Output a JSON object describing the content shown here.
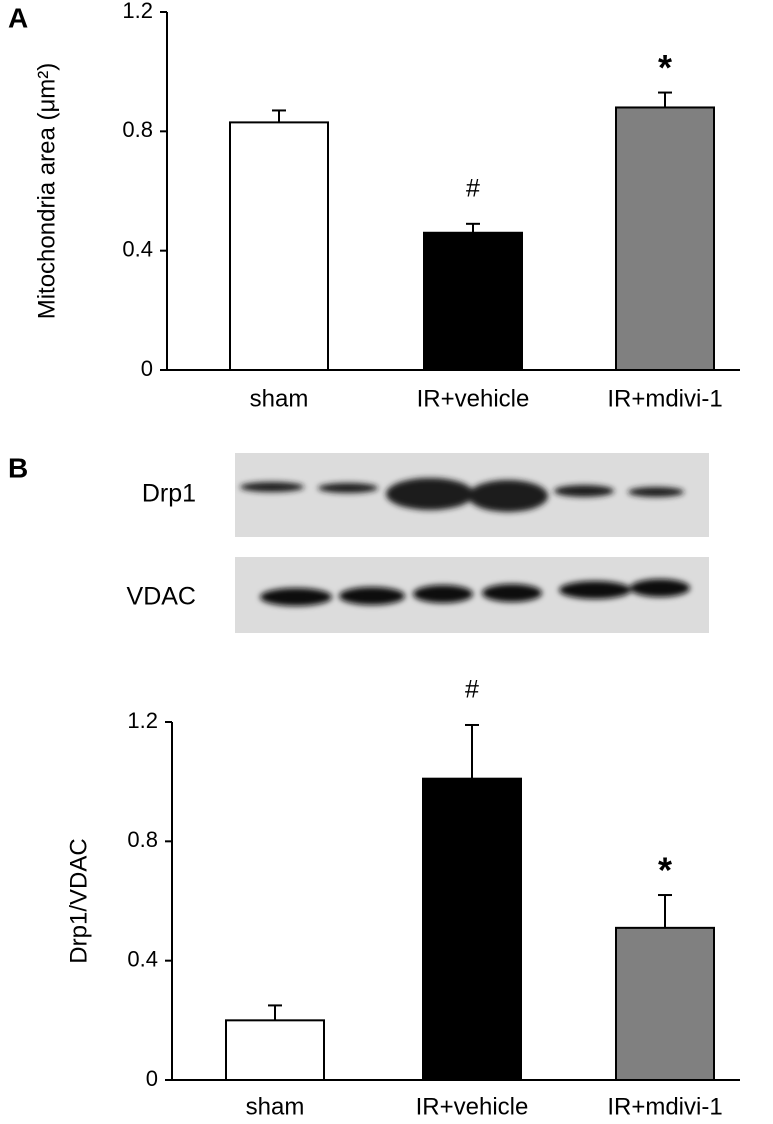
{
  "chart_data": [
    {
      "type": "bar",
      "panel": "A",
      "ylabel": "Mitochondria area (μm²)",
      "categories": [
        "sham",
        "IR+vehicle",
        "IR+mdivi-1"
      ],
      "values": [
        0.83,
        0.46,
        0.88
      ],
      "errors": [
        0.04,
        0.03,
        0.05
      ],
      "colors": [
        "#ffffff",
        "#000000",
        "#808080"
      ],
      "annotations": [
        null,
        "#",
        "*"
      ],
      "ylim": [
        0,
        1.2
      ],
      "yticks": [
        0,
        0.4,
        0.8,
        1.2
      ]
    },
    {
      "type": "bar",
      "panel": "B",
      "ylabel": "Drp1/VDAC",
      "categories": [
        "sham",
        "IR+vehicle",
        "IR+mdivi-1"
      ],
      "values": [
        0.2,
        1.01,
        0.51
      ],
      "errors": [
        0.05,
        0.18,
        0.11
      ],
      "colors": [
        "#ffffff",
        "#000000",
        "#808080"
      ],
      "annotations": [
        null,
        "#",
        "*"
      ],
      "ylim": [
        0,
        1.2
      ],
      "yticks": [
        0,
        0.4,
        0.8,
        1.2
      ]
    }
  ],
  "blot": {
    "labels": [
      "Drp1",
      "VDAC"
    ]
  }
}
